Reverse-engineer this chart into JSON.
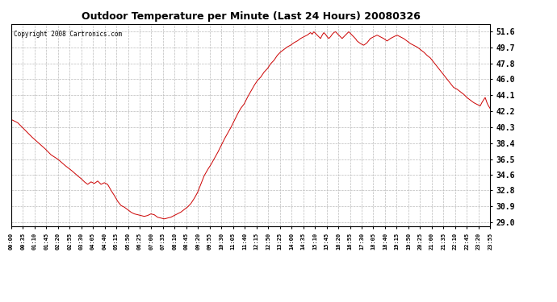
{
  "title": "Outdoor Temperature per Minute (Last 24 Hours) 20080326",
  "copyright": "Copyright 2008 Cartronics.com",
  "line_color": "#cc0000",
  "bg_color": "#ffffff",
  "plot_bg_color": "#ffffff",
  "grid_color": "#bbbbbb",
  "yticks": [
    29.0,
    30.9,
    32.8,
    34.6,
    36.5,
    38.4,
    40.3,
    42.2,
    44.1,
    46.0,
    47.8,
    49.7,
    51.6
  ],
  "ylim": [
    28.5,
    52.5
  ],
  "xtick_labels": [
    "00:00",
    "00:35",
    "01:10",
    "01:45",
    "02:20",
    "02:55",
    "03:30",
    "04:05",
    "04:40",
    "05:15",
    "05:50",
    "06:25",
    "07:00",
    "07:35",
    "08:10",
    "08:45",
    "09:20",
    "09:55",
    "10:30",
    "11:05",
    "11:40",
    "12:15",
    "12:50",
    "13:25",
    "14:00",
    "14:35",
    "15:10",
    "15:45",
    "16:20",
    "16:55",
    "17:30",
    "18:05",
    "18:40",
    "19:15",
    "19:50",
    "20:25",
    "21:00",
    "21:35",
    "22:10",
    "22:45",
    "23:20",
    "23:55"
  ],
  "temperature_data": [
    [
      0,
      41.2
    ],
    [
      20,
      40.8
    ],
    [
      40,
      40.0
    ],
    [
      60,
      39.2
    ],
    [
      80,
      38.5
    ],
    [
      100,
      37.8
    ],
    [
      120,
      37.0
    ],
    [
      140,
      36.5
    ],
    [
      160,
      35.8
    ],
    [
      180,
      35.2
    ],
    [
      200,
      34.5
    ],
    [
      210,
      34.2
    ],
    [
      220,
      33.8
    ],
    [
      230,
      33.5
    ],
    [
      240,
      33.8
    ],
    [
      250,
      33.6
    ],
    [
      260,
      33.9
    ],
    [
      270,
      33.5
    ],
    [
      280,
      33.7
    ],
    [
      290,
      33.5
    ],
    [
      300,
      32.8
    ],
    [
      310,
      32.2
    ],
    [
      320,
      31.5
    ],
    [
      330,
      31.0
    ],
    [
      340,
      30.8
    ],
    [
      350,
      30.5
    ],
    [
      360,
      30.2
    ],
    [
      370,
      30.0
    ],
    [
      380,
      29.9
    ],
    [
      390,
      29.8
    ],
    [
      400,
      29.7
    ],
    [
      410,
      29.8
    ],
    [
      420,
      30.0
    ],
    [
      430,
      29.9
    ],
    [
      440,
      29.6
    ],
    [
      450,
      29.5
    ],
    [
      460,
      29.4
    ],
    [
      470,
      29.5
    ],
    [
      480,
      29.6
    ],
    [
      490,
      29.8
    ],
    [
      500,
      30.0
    ],
    [
      510,
      30.2
    ],
    [
      520,
      30.5
    ],
    [
      530,
      30.8
    ],
    [
      540,
      31.2
    ],
    [
      550,
      31.8
    ],
    [
      560,
      32.5
    ],
    [
      570,
      33.5
    ],
    [
      580,
      34.5
    ],
    [
      590,
      35.2
    ],
    [
      600,
      35.8
    ],
    [
      610,
      36.5
    ],
    [
      620,
      37.2
    ],
    [
      630,
      38.0
    ],
    [
      640,
      38.8
    ],
    [
      650,
      39.5
    ],
    [
      660,
      40.2
    ],
    [
      670,
      41.0
    ],
    [
      680,
      41.8
    ],
    [
      690,
      42.5
    ],
    [
      700,
      43.0
    ],
    [
      710,
      43.8
    ],
    [
      720,
      44.5
    ],
    [
      730,
      45.2
    ],
    [
      740,
      45.8
    ],
    [
      750,
      46.2
    ],
    [
      760,
      46.8
    ],
    [
      770,
      47.2
    ],
    [
      780,
      47.8
    ],
    [
      790,
      48.2
    ],
    [
      800,
      48.8
    ],
    [
      810,
      49.2
    ],
    [
      820,
      49.5
    ],
    [
      830,
      49.8
    ],
    [
      840,
      50.0
    ],
    [
      850,
      50.3
    ],
    [
      860,
      50.5
    ],
    [
      870,
      50.8
    ],
    [
      880,
      51.0
    ],
    [
      890,
      51.2
    ],
    [
      900,
      51.5
    ],
    [
      905,
      51.3
    ],
    [
      910,
      51.6
    ],
    [
      915,
      51.4
    ],
    [
      920,
      51.2
    ],
    [
      925,
      51.0
    ],
    [
      930,
      50.8
    ],
    [
      935,
      51.2
    ],
    [
      940,
      51.5
    ],
    [
      945,
      51.3
    ],
    [
      950,
      51.0
    ],
    [
      955,
      50.8
    ],
    [
      960,
      51.0
    ],
    [
      965,
      51.3
    ],
    [
      970,
      51.5
    ],
    [
      975,
      51.6
    ],
    [
      980,
      51.4
    ],
    [
      985,
      51.2
    ],
    [
      990,
      51.0
    ],
    [
      995,
      50.8
    ],
    [
      1000,
      51.0
    ],
    [
      1005,
      51.2
    ],
    [
      1010,
      51.4
    ],
    [
      1015,
      51.6
    ],
    [
      1020,
      51.4
    ],
    [
      1025,
      51.2
    ],
    [
      1030,
      51.0
    ],
    [
      1035,
      50.8
    ],
    [
      1040,
      50.5
    ],
    [
      1050,
      50.2
    ],
    [
      1060,
      50.0
    ],
    [
      1070,
      50.3
    ],
    [
      1080,
      50.8
    ],
    [
      1090,
      51.0
    ],
    [
      1100,
      51.2
    ],
    [
      1110,
      51.0
    ],
    [
      1120,
      50.8
    ],
    [
      1130,
      50.5
    ],
    [
      1140,
      50.8
    ],
    [
      1150,
      51.0
    ],
    [
      1160,
      51.2
    ],
    [
      1170,
      51.0
    ],
    [
      1180,
      50.8
    ],
    [
      1190,
      50.5
    ],
    [
      1200,
      50.2
    ],
    [
      1210,
      50.0
    ],
    [
      1220,
      49.8
    ],
    [
      1230,
      49.5
    ],
    [
      1240,
      49.2
    ],
    [
      1250,
      48.8
    ],
    [
      1260,
      48.5
    ],
    [
      1270,
      48.0
    ],
    [
      1280,
      47.5
    ],
    [
      1290,
      47.0
    ],
    [
      1300,
      46.5
    ],
    [
      1310,
      46.0
    ],
    [
      1320,
      45.5
    ],
    [
      1330,
      45.0
    ],
    [
      1340,
      44.8
    ],
    [
      1350,
      44.5
    ],
    [
      1360,
      44.2
    ],
    [
      1370,
      43.8
    ],
    [
      1380,
      43.5
    ],
    [
      1390,
      43.2
    ],
    [
      1400,
      43.0
    ],
    [
      1410,
      42.8
    ],
    [
      1415,
      43.2
    ],
    [
      1420,
      43.5
    ],
    [
      1425,
      43.8
    ],
    [
      1430,
      43.2
    ],
    [
      1435,
      42.8
    ],
    [
      1440,
      42.5
    ]
  ]
}
